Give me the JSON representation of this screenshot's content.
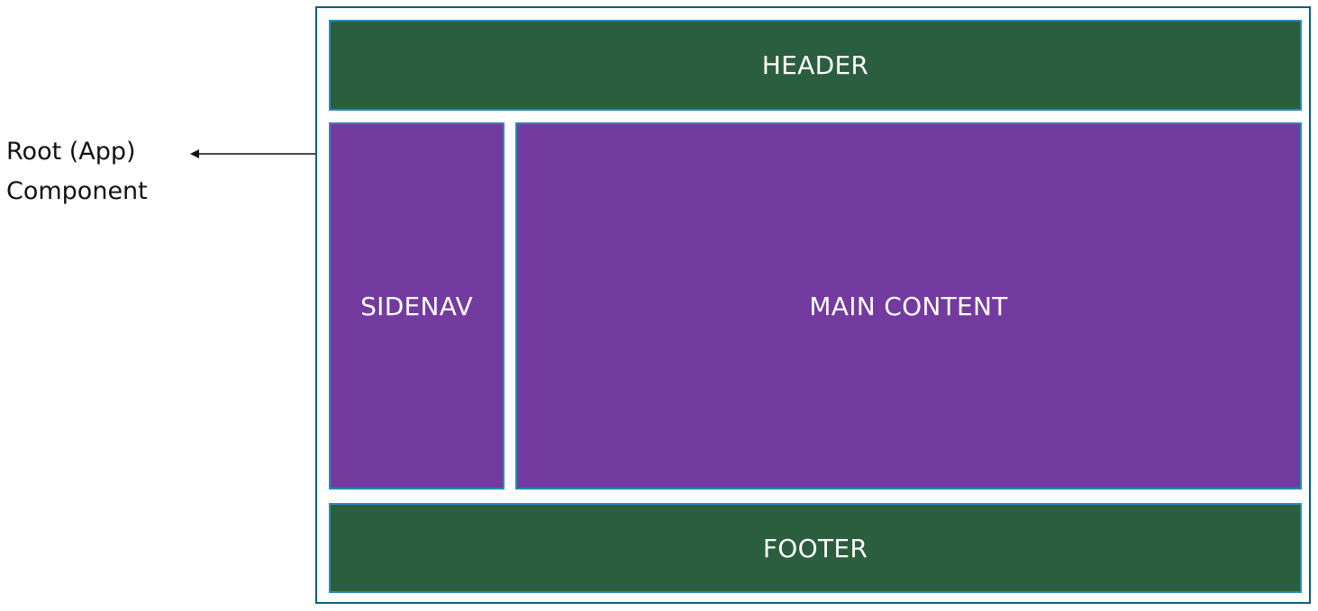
{
  "root_label": {
    "line1": "Root (App)",
    "line2": "Component"
  },
  "blocks": {
    "header": "HEADER",
    "sidenav": "SIDENAV",
    "main": "MAIN CONTENT",
    "footer": "FOOTER"
  },
  "colors": {
    "header_footer_fill": "#2b5e3e",
    "sidenav_main_fill": "#733ba0",
    "block_border": "#2a8ab8",
    "root_border": "#0f5c7a",
    "block_text": "#ffffff"
  }
}
